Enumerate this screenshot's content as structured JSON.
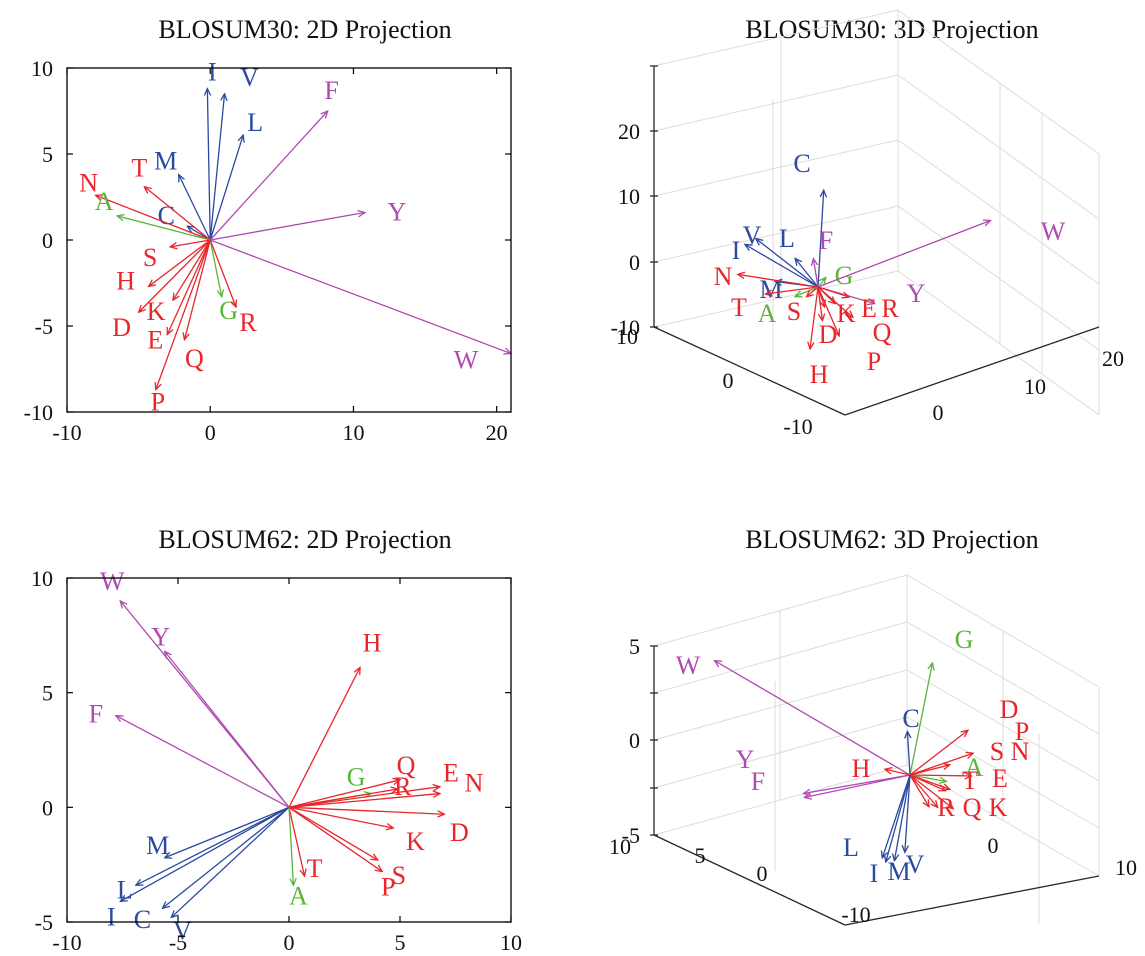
{
  "colors": {
    "hydrophobic": "#2a4aa0",
    "polar": "#e8262b",
    "small": "#5cb43c",
    "aromatic": "#b04ab0"
  },
  "chart_data": [
    {
      "id": "b30-2d",
      "type": "vector-projection-2d",
      "title": "BLOSUM30: 2D Projection",
      "xlim": [
        -10,
        21
      ],
      "ylim": [
        -10,
        10
      ],
      "xticks": [
        -10,
        0,
        10,
        20
      ],
      "yticks": [
        -10,
        -5,
        0,
        5,
        10
      ],
      "vectors": [
        {
          "label": "I",
          "group": "hydrophobic",
          "x": -0.2,
          "y": 8.8
        },
        {
          "label": "V",
          "group": "hydrophobic",
          "x": 1.0,
          "y": 8.5
        },
        {
          "label": "L",
          "group": "hydrophobic",
          "x": 2.3,
          "y": 6.1
        },
        {
          "label": "M",
          "group": "hydrophobic",
          "x": -2.2,
          "y": 3.8
        },
        {
          "label": "C",
          "group": "hydrophobic",
          "x": -1.6,
          "y": 0.8
        },
        {
          "label": "N",
          "group": "polar",
          "x": -8.0,
          "y": 2.6
        },
        {
          "label": "T",
          "group": "polar",
          "x": -4.6,
          "y": 3.1
        },
        {
          "label": "A",
          "group": "small",
          "x": -6.5,
          "y": 1.4
        },
        {
          "label": "S",
          "group": "polar",
          "x": -2.8,
          "y": -0.4
        },
        {
          "label": "H",
          "group": "polar",
          "x": -4.3,
          "y": -2.7
        },
        {
          "label": "D",
          "group": "polar",
          "x": -5.0,
          "y": -4.2
        },
        {
          "label": "K",
          "group": "polar",
          "x": -2.6,
          "y": -3.5
        },
        {
          "label": "E",
          "group": "polar",
          "x": -3.0,
          "y": -5.5
        },
        {
          "label": "Q",
          "group": "polar",
          "x": -1.8,
          "y": -5.8
        },
        {
          "label": "P",
          "group": "polar",
          "x": -3.8,
          "y": -8.7
        },
        {
          "label": "G",
          "group": "small",
          "x": 0.8,
          "y": -3.3
        },
        {
          "label": "R",
          "group": "polar",
          "x": 1.8,
          "y": -3.9
        },
        {
          "label": "F",
          "group": "aromatic",
          "x": 8.2,
          "y": 7.5
        },
        {
          "label": "Y",
          "group": "aromatic",
          "x": 10.8,
          "y": 1.6
        },
        {
          "label": "W",
          "group": "aromatic",
          "x": 21.0,
          "y": -6.6
        }
      ]
    },
    {
      "id": "b30-3d",
      "type": "vector-projection-3d",
      "title": "BLOSUM30: 3D Projection",
      "xlim": [
        -10,
        20
      ],
      "ylim": [
        -10,
        10
      ],
      "zlim": [
        -10,
        20
      ],
      "xticks": [
        0,
        10,
        20
      ],
      "yticks": [
        -10,
        0,
        10
      ],
      "zticks": [
        -10,
        0,
        10,
        20
      ],
      "vectors": [
        {
          "label": "C",
          "group": "hydrophobic",
          "x": 0.9,
          "y": 0.4,
          "z": 15.5
        },
        {
          "label": "V",
          "group": "hydrophobic",
          "x": -6.5,
          "y": 1.5,
          "z": 5.5
        },
        {
          "label": "I",
          "group": "hydrophobic",
          "x": -7.5,
          "y": 2.0,
          "z": 4.5
        },
        {
          "label": "L",
          "group": "hydrophobic",
          "x": -2.2,
          "y": 0.9,
          "z": 4.0
        },
        {
          "label": "M",
          "group": "hydrophobic",
          "x": -4.5,
          "y": 1.0,
          "z": -0.5
        },
        {
          "label": "F",
          "group": "aromatic",
          "x": -0.6,
          "y": -0.1,
          "z": 4.0
        },
        {
          "label": "G",
          "group": "small",
          "x": 0.7,
          "y": -0.4,
          "z": 1.5
        },
        {
          "label": "W",
          "group": "aromatic",
          "x": 16.7,
          "y": -6.5,
          "z": 13.3
        },
        {
          "label": "Y",
          "group": "aromatic",
          "x": 5.6,
          "y": -1.9,
          "z": -1.3
        },
        {
          "label": "N",
          "group": "polar",
          "x": -8.8,
          "y": 1.2,
          "z": -1.2
        },
        {
          "label": "T",
          "group": "polar",
          "x": -6.0,
          "y": 0.4,
          "z": -3.5
        },
        {
          "label": "A",
          "group": "small",
          "x": -2.6,
          "y": 0.2,
          "z": -2.5
        },
        {
          "label": "S",
          "group": "polar",
          "x": -1.3,
          "y": 0.1,
          "z": -2.0
        },
        {
          "label": "K",
          "group": "polar",
          "x": 0.6,
          "y": -0.3,
          "z": -3.0
        },
        {
          "label": "E",
          "group": "polar",
          "x": 1.7,
          "y": -0.6,
          "z": -2.2
        },
        {
          "label": "R",
          "group": "polar",
          "x": 3.0,
          "y": -1.2,
          "z": -1.0
        },
        {
          "label": "D",
          "group": "polar",
          "x": 0.3,
          "y": -0.4,
          "z": -5.3
        },
        {
          "label": "Q",
          "group": "polar",
          "x": 3.4,
          "y": -1.3,
          "z": -4.0
        },
        {
          "label": "P",
          "group": "polar",
          "x": 2.0,
          "y": -0.9,
          "z": -7.2
        },
        {
          "label": "H",
          "group": "polar",
          "x": -1.0,
          "y": -0.1,
          "z": -10.0
        }
      ]
    },
    {
      "id": "b62-2d",
      "type": "vector-projection-2d",
      "title": "BLOSUM62: 2D Projection",
      "xlim": [
        -10,
        10
      ],
      "ylim": [
        -5,
        10
      ],
      "xticks": [
        -10,
        -5,
        0,
        5,
        10
      ],
      "yticks": [
        -5,
        0,
        5,
        10
      ],
      "vectors": [
        {
          "label": "W",
          "group": "aromatic",
          "x": -7.6,
          "y": 9.0
        },
        {
          "label": "Y",
          "group": "aromatic",
          "x": -5.6,
          "y": 6.8
        },
        {
          "label": "F",
          "group": "aromatic",
          "x": -7.8,
          "y": 4.0
        },
        {
          "label": "H",
          "group": "polar",
          "x": 3.2,
          "y": 6.1
        },
        {
          "label": "M",
          "group": "hydrophobic",
          "x": -5.6,
          "y": -2.2
        },
        {
          "label": "L",
          "group": "hydrophobic",
          "x": -6.9,
          "y": -3.4
        },
        {
          "label": "I",
          "group": "hydrophobic",
          "x": -7.6,
          "y": -4.1
        },
        {
          "label": "C",
          "group": "hydrophobic",
          "x": -5.7,
          "y": -4.4
        },
        {
          "label": "V",
          "group": "hydrophobic",
          "x": -5.3,
          "y": -4.8
        },
        {
          "label": "G",
          "group": "small",
          "x": 3.7,
          "y": 0.6
        },
        {
          "label": "Q",
          "group": "polar",
          "x": 5.0,
          "y": 1.2
        },
        {
          "label": "R",
          "group": "polar",
          "x": 4.9,
          "y": 0.8
        },
        {
          "label": "E",
          "group": "polar",
          "x": 6.8,
          "y": 0.9
        },
        {
          "label": "N",
          "group": "polar",
          "x": 6.8,
          "y": 0.6
        },
        {
          "label": "D",
          "group": "polar",
          "x": 7.0,
          "y": -0.3
        },
        {
          "label": "K",
          "group": "polar",
          "x": 4.7,
          "y": -0.9
        },
        {
          "label": "S",
          "group": "polar",
          "x": 4.0,
          "y": -2.3
        },
        {
          "label": "P",
          "group": "polar",
          "x": 4.2,
          "y": -2.8
        },
        {
          "label": "T",
          "group": "polar",
          "x": 0.7,
          "y": -3.0
        },
        {
          "label": "A",
          "group": "small",
          "x": 0.2,
          "y": -3.4
        }
      ]
    },
    {
      "id": "b62-3d",
      "type": "vector-projection-3d",
      "title": "BLOSUM62: 3D Projection",
      "xlim": [
        -10,
        10
      ],
      "ylim": [
        -10,
        10
      ],
      "zlim": [
        -5,
        5
      ],
      "xticks": [
        0,
        10
      ],
      "yticks": [
        -10,
        0,
        5,
        10
      ],
      "zticks": [
        -5,
        0,
        5
      ],
      "vectors": [
        {
          "label": "W",
          "group": "aromatic",
          "x": -16.1,
          "y": 6.5,
          "z": 5.3
        },
        {
          "label": "G",
          "group": "small",
          "x": 1.8,
          "y": -0.8,
          "z": 6.0
        },
        {
          "label": "C",
          "group": "hydrophobic",
          "x": -0.2,
          "y": 0.1,
          "z": 2.3
        },
        {
          "label": "D",
          "group": "polar",
          "x": 4.8,
          "y": -1.9,
          "z": 2.6
        },
        {
          "label": "P",
          "group": "polar",
          "x": 5.2,
          "y": -2.1,
          "z": 1.4
        },
        {
          "label": "S",
          "group": "polar",
          "x": 3.3,
          "y": -1.3,
          "z": 0.7
        },
        {
          "label": "N",
          "group": "polar",
          "x": 5.1,
          "y": -2.0,
          "z": 0.2
        },
        {
          "label": "A",
          "group": "small",
          "x": 3.0,
          "y": -1.2,
          "z": -0.2
        },
        {
          "label": "E",
          "group": "polar",
          "x": 3.3,
          "y": -1.3,
          "z": -0.6
        },
        {
          "label": "T",
          "group": "polar",
          "x": 2.9,
          "y": -1.2,
          "z": -0.7
        },
        {
          "label": "H",
          "group": "polar",
          "x": -2.1,
          "y": 0.8,
          "z": 0.2
        },
        {
          "label": "Y",
          "group": "aromatic",
          "x": -8.8,
          "y": 3.5,
          "z": -1.4
        },
        {
          "label": "F",
          "group": "aromatic",
          "x": -8.7,
          "y": 3.5,
          "z": -1.6
        },
        {
          "label": "R",
          "group": "polar",
          "x": 1.6,
          "y": -0.6,
          "z": -1.6
        },
        {
          "label": "Q",
          "group": "polar",
          "x": 2.3,
          "y": -0.9,
          "z": -1.6
        },
        {
          "label": "K",
          "group": "polar",
          "x": 3.6,
          "y": -1.4,
          "z": -1.6
        },
        {
          "label": "L",
          "group": "hydrophobic",
          "x": -2.3,
          "y": 0.9,
          "z": -4.5
        },
        {
          "label": "I",
          "group": "hydrophobic",
          "x": -2.0,
          "y": 0.8,
          "z": -4.7
        },
        {
          "label": "M",
          "group": "hydrophobic",
          "x": -1.3,
          "y": 0.5,
          "z": -4.6
        },
        {
          "label": "V",
          "group": "hydrophobic",
          "x": -0.4,
          "y": 0.2,
          "z": -4.1
        }
      ]
    }
  ]
}
